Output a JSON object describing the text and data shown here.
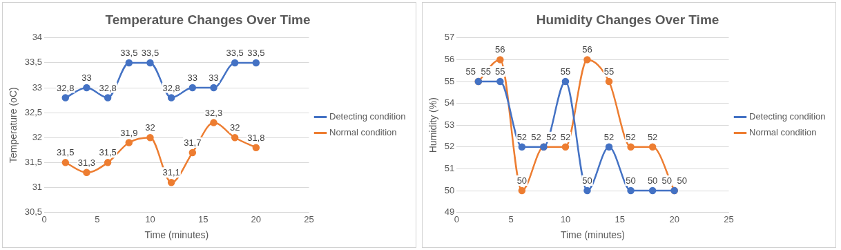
{
  "chart_data": [
    {
      "type": "line",
      "title": "Temperature Changes Over Time",
      "xlabel": "Time (minutes)",
      "ylabel": "Temperature (oC)",
      "x": [
        2,
        4,
        6,
        8,
        10,
        12,
        14,
        16,
        18,
        20
      ],
      "xlim": [
        0,
        25
      ],
      "xticks": [
        0,
        5,
        10,
        15,
        20,
        25
      ],
      "ylim": [
        30.5,
        34
      ],
      "yticks": [
        {
          "value": 30.5,
          "label": "30,5"
        },
        31,
        {
          "value": 31.5,
          "label": "31,5"
        },
        32,
        {
          "value": 32.5,
          "label": "32,5"
        },
        33,
        {
          "value": 33.5,
          "label": "33,5"
        },
        34
      ],
      "grid": "y",
      "legend": "right",
      "marker": "circle",
      "series": [
        {
          "name": "Detecting condition",
          "color": "#4472c4",
          "values": [
            32.8,
            33,
            32.8,
            33.5,
            33.5,
            32.8,
            33,
            33,
            33.5,
            33.5
          ],
          "value_labels": [
            "32,8",
            "33",
            "32,8",
            "33,5",
            "33,5",
            "32,8",
            "33",
            "33",
            "33,5",
            "33,5"
          ]
        },
        {
          "name": "Normal condition",
          "color": "#ed7d31",
          "values": [
            31.5,
            31.3,
            31.5,
            31.9,
            32,
            31.1,
            31.7,
            32.3,
            32,
            31.8
          ],
          "value_labels": [
            "31,5",
            "31,3",
            "31,5",
            "31,9",
            "32",
            "31,1",
            "31,7",
            "32,3",
            "32",
            "31,8"
          ]
        }
      ]
    },
    {
      "type": "line",
      "title": "Humidity Changes Over Time",
      "xlabel": "Time (minutes)",
      "ylabel": "Humidity (%)",
      "x": [
        2,
        4,
        6,
        8,
        10,
        12,
        14,
        16,
        18,
        20
      ],
      "xlim": [
        0,
        25
      ],
      "xticks": [
        0,
        5,
        10,
        15,
        20,
        25
      ],
      "ylim": [
        49,
        57
      ],
      "yticks": [
        49,
        50,
        51,
        52,
        53,
        54,
        55,
        56,
        57
      ],
      "grid": "y",
      "legend": "right",
      "marker": "circle",
      "data_labels": true,
      "series": [
        {
          "name": "Detecting condition",
          "color": "#4472c4",
          "values": [
            55,
            55,
            52,
            52,
            55,
            50,
            52,
            50,
            50,
            50
          ]
        },
        {
          "name": "Normal condition",
          "color": "#ed7d31",
          "values": [
            55,
            56,
            50,
            52,
            52,
            56,
            55,
            52,
            52,
            50
          ]
        }
      ]
    }
  ]
}
